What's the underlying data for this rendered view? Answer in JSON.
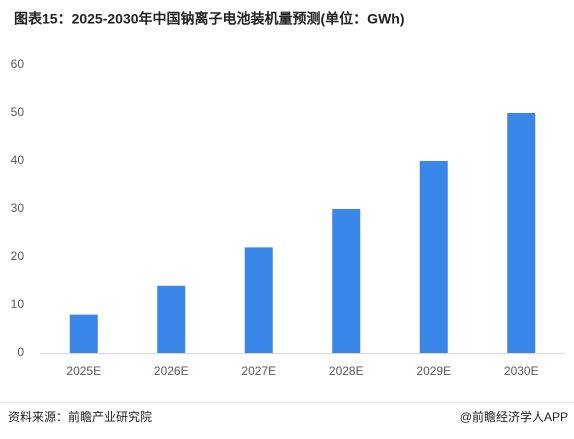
{
  "chart_data": {
    "type": "bar",
    "title": "图表15：2025-2030年中国钠离子电池装机量预测(单位：GWh)",
    "categories": [
      "2025E",
      "2026E",
      "2027E",
      "2028E",
      "2029E",
      "2030E"
    ],
    "values": [
      8,
      14,
      22,
      30,
      40,
      50
    ],
    "color": "#3a86e8",
    "ylim": [
      0,
      60
    ],
    "yticks": [
      0,
      10,
      20,
      30,
      40,
      50,
      60
    ],
    "grid": false,
    "source": "资料来源：前瞻产业研究院",
    "credit": "@前瞻经济学人APP"
  }
}
